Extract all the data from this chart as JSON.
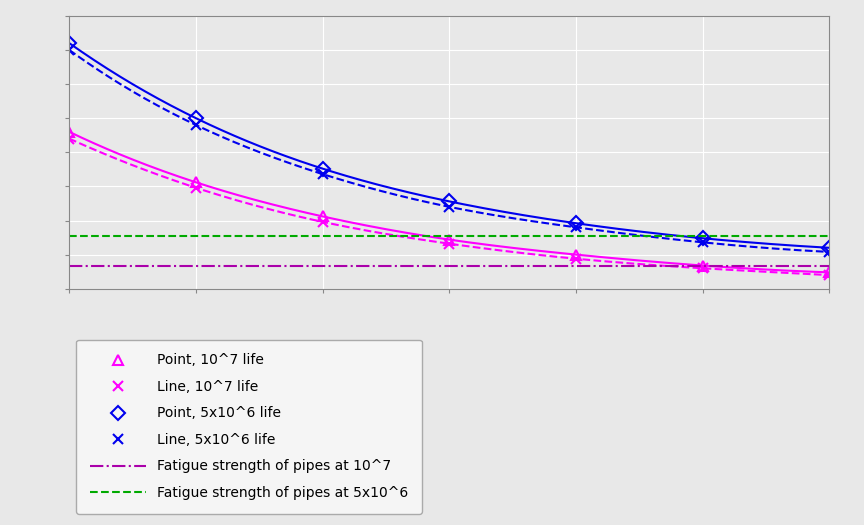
{
  "x_values": [
    0,
    0.5,
    1,
    1.5,
    2,
    2.5,
    3,
    3.5,
    4,
    4.5,
    5,
    5.5,
    6
  ],
  "point_10e7": [
    155,
    135,
    118,
    104,
    93,
    84,
    76,
    70,
    65,
    61,
    57,
    54,
    52
  ],
  "line_10e7": [
    150,
    130,
    114,
    100,
    89,
    80,
    73,
    67,
    62,
    58,
    55,
    52,
    50
  ],
  "point_5e6": [
    220,
    190,
    165,
    145,
    128,
    115,
    104,
    95,
    88,
    82,
    77,
    73,
    70
  ],
  "line_5e6": [
    215,
    185,
    160,
    140,
    124,
    111,
    100,
    92,
    85,
    79,
    74,
    70,
    67
  ],
  "fatigue_pipe_10e7": 57,
  "fatigue_pipe_5e6": 79,
  "x_marker_positions": [
    0,
    1,
    2,
    3,
    4,
    5,
    6
  ],
  "point_10e7_markers": [
    155,
    118,
    93,
    76,
    65,
    57,
    52
  ],
  "line_10e7_markers": [
    150,
    114,
    89,
    73,
    62,
    55,
    50
  ],
  "point_5e6_markers": [
    220,
    165,
    128,
    104,
    88,
    77,
    70
  ],
  "line_5e6_markers": [
    215,
    160,
    124,
    100,
    85,
    74,
    67
  ],
  "xlim": [
    0,
    6
  ],
  "ylim_plot": [
    40,
    240
  ],
  "color_magenta": "#FF00FF",
  "color_magenta_dark": "#CC00CC",
  "color_blue": "#0000EE",
  "color_blue_dashed": "#4444DD",
  "color_purple": "#AA00AA",
  "color_green": "#00AA00",
  "legend_labels": [
    "Point, 10^7 life",
    "Line, 10^7 life",
    "Point, 5x10^6 life",
    "Line, 5x10^6 life",
    "Fatigue strength of pipes at 10^7",
    "Fatigue strength of pipes at 5x10^6"
  ],
  "background_color": "#e8e8e8",
  "grid_color": "#ffffff"
}
